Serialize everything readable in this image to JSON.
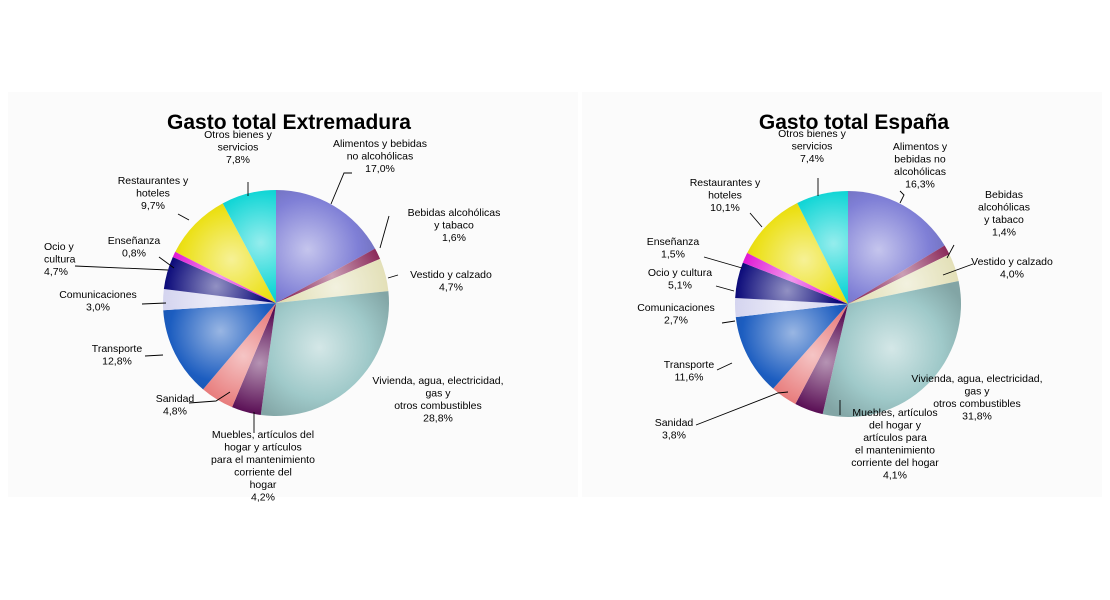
{
  "chart_data": [
    {
      "type": "pie",
      "title": "Gasto total Extremadura",
      "unit": "%",
      "slices": [
        {
          "label": "Alimentos y bebidas no alcohólicas",
          "value": 17.0,
          "display": "17,0%",
          "color": "#7f7fd6"
        },
        {
          "label": "Bebidas alcohólicas y tabaco",
          "value": 1.6,
          "display": "1,6%",
          "color": "#8b2a5a"
        },
        {
          "label": "Vestido y calzado",
          "value": 4.7,
          "display": "4,7%",
          "color": "#e3e0b8"
        },
        {
          "label": "Vivienda, agua, electricidad, gas y otros combustibles",
          "value": 28.8,
          "display": "28,8%",
          "color": "#9fc9c9"
        },
        {
          "label": "Muebles, artículos del hogar y artículos para el mantenimiento corriente del hogar",
          "value": 4.2,
          "display": "4,2%",
          "color": "#5a0f55"
        },
        {
          "label": "Sanidad",
          "value": 4.8,
          "display": "4,8%",
          "color": "#e87d7d"
        },
        {
          "label": "Transporte",
          "value": 12.8,
          "display": "12,8%",
          "color": "#1c5dc0"
        },
        {
          "label": "Comunicaciones",
          "value": 3.0,
          "display": "3,0%",
          "color": "#d4d4ef"
        },
        {
          "label": "Ocio y cultura",
          "value": 4.7,
          "display": "4,7%",
          "color": "#0c0b7a"
        },
        {
          "label": "Enseñanza",
          "value": 0.8,
          "display": "0,8%",
          "color": "#e019d4"
        },
        {
          "label": "Restaurantes y hoteles",
          "value": 9.7,
          "display": "9,7%",
          "color": "#ece015"
        },
        {
          "label": "Otros bienes y servicios",
          "value": 7.8,
          "display": "7,8%",
          "color": "#13d6d6"
        }
      ]
    },
    {
      "type": "pie",
      "title": "Gasto total España",
      "unit": "%",
      "slices": [
        {
          "label": "Alimentos y bebidas no alcohólicas",
          "value": 16.3,
          "display": "16,3%",
          "color": "#7f7fd6"
        },
        {
          "label": "Bebidas alcohólicas y tabaco",
          "value": 1.4,
          "display": "1,4%",
          "color": "#8b2a5a"
        },
        {
          "label": "Vestido y calzado",
          "value": 4.0,
          "display": "4,0%",
          "color": "#e3e0b8"
        },
        {
          "label": "Vivienda, agua, electricidad, gas y otros combustibles",
          "value": 31.8,
          "display": "31,8%",
          "color": "#9fc9c9"
        },
        {
          "label": "Muebles, artículos del hogar y artículos para el mantenimiento corriente del hogar",
          "value": 4.1,
          "display": "4,1%",
          "color": "#5a0f55"
        },
        {
          "label": "Sanidad",
          "value": 3.8,
          "display": "3,8%",
          "color": "#e87d7d"
        },
        {
          "label": "Transporte",
          "value": 11.6,
          "display": "11,6%",
          "color": "#1c5dc0"
        },
        {
          "label": "Comunicaciones",
          "value": 2.7,
          "display": "2,7%",
          "color": "#d4d4ef"
        },
        {
          "label": "Ocio y cultura",
          "value": 5.1,
          "display": "5,1%",
          "color": "#0c0b7a"
        },
        {
          "label": "Enseñanza",
          "value": 1.5,
          "display": "1,5%",
          "color": "#e019d4"
        },
        {
          "label": "Restaurantes y hoteles",
          "value": 10.1,
          "display": "10,1%",
          "color": "#ece015"
        },
        {
          "label": "Otros bienes y servicios",
          "value": 7.4,
          "display": "7,4%",
          "color": "#13d6d6"
        }
      ]
    }
  ]
}
